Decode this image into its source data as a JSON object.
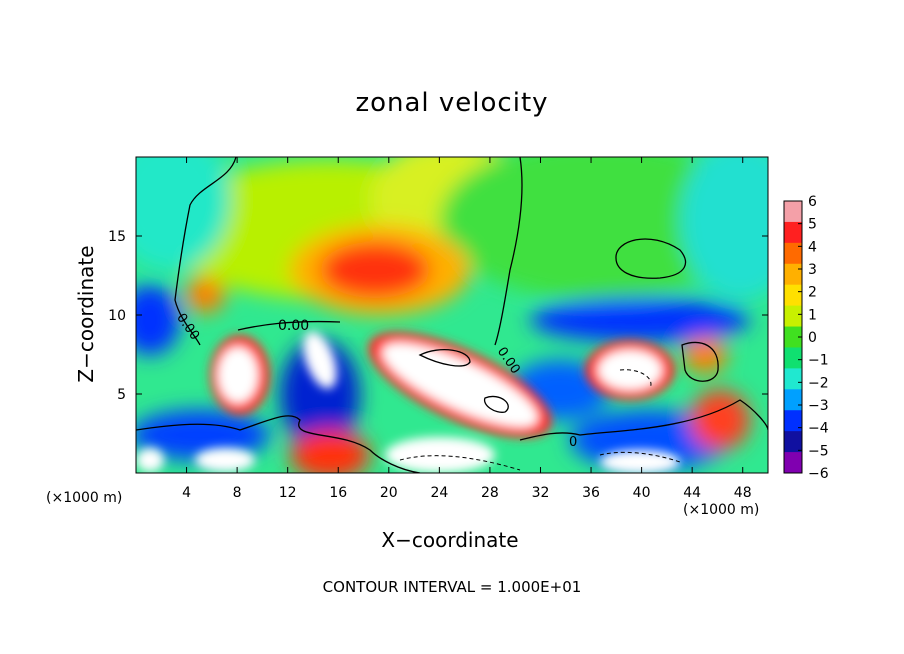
{
  "chart_data": {
    "type": "heatmap",
    "title": "zonal velocity",
    "xlabel": "X−coordinate",
    "ylabel": "Z−coordinate",
    "x_unit_label_left": "(×1000 m)",
    "x_unit_label_right": "(×1000 m)",
    "x_ticks": [
      "4",
      "8",
      "12",
      "16",
      "20",
      "24",
      "28",
      "32",
      "36",
      "40",
      "44",
      "48"
    ],
    "y_ticks": [
      "5",
      "10",
      "15"
    ],
    "xlim": [
      0,
      50
    ],
    "ylim": [
      0,
      20
    ],
    "footer": "CONTOUR INTERVAL = 1.000E+01",
    "contour_labels": [
      "0.00",
      "0.00",
      "0.00",
      "0"
    ],
    "colorbar": {
      "ticks": [
        "6",
        "5",
        "4",
        "3",
        "2",
        "1",
        "0",
        "−1",
        "−2",
        "−3",
        "−4",
        "−5",
        "−6"
      ],
      "range": [
        -6,
        6
      ],
      "colors": [
        "#f4a0a8",
        "#ff2020",
        "#ff6a00",
        "#ffb000",
        "#ffe000",
        "#c8f000",
        "#40e020",
        "#10e070",
        "#20e8d0",
        "#00a0ff",
        "#0030ff",
        "#1010a0",
        "#8000b0"
      ]
    },
    "regions": [
      {
        "name": "red-max-upper",
        "x": 19,
        "z": 12.5,
        "value": 5
      },
      {
        "name": "white-core",
        "x": 23,
        "z": 5.5,
        "value": 7
      },
      {
        "name": "white-right",
        "x": 39,
        "z": 5.8,
        "value": 7
      },
      {
        "name": "white-left",
        "x": 8.5,
        "z": 6,
        "value": 7
      },
      {
        "name": "blue-band-left",
        "x": 1,
        "z": 9.5,
        "value": -4
      },
      {
        "name": "blue-band-right",
        "x": 42,
        "z": 9.5,
        "value": -4
      }
    ]
  }
}
